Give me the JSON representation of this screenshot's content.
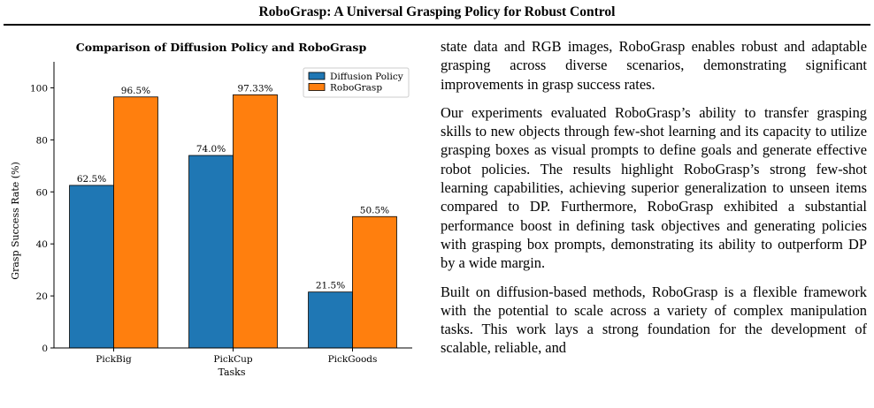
{
  "header": {
    "title": "RoboGrasp: A Universal Grasping Policy for Robust Control"
  },
  "chart_data": {
    "type": "bar",
    "title": "Comparison of Diffusion Policy and RoboGrasp",
    "xlabel": "Tasks",
    "ylabel": "Grasp Success Rate (%)",
    "categories": [
      "PickBig",
      "PickCup",
      "PickGoods"
    ],
    "series": [
      {
        "name": "Diffusion Policy",
        "values": [
          62.5,
          74.0,
          21.5
        ],
        "labels": [
          "62.5%",
          "74.0%",
          "21.5%"
        ],
        "color": "#1f77b4"
      },
      {
        "name": "RoboGrasp",
        "values": [
          96.5,
          97.33,
          50.5
        ],
        "labels": [
          "96.5%",
          "97.33%",
          "50.5%"
        ],
        "color": "#ff7f0e"
      }
    ],
    "ylim": [
      0,
      110
    ],
    "yticks": [
      "0",
      "20",
      "40",
      "60",
      "80",
      "100"
    ],
    "legend": "top-right",
    "grid": false
  },
  "body": {
    "paragraphs": [
      "state data and RGB images, RoboGrasp enables robust and adaptable grasping across diverse scenarios, demonstrating significant improvements in grasp success rates.",
      "Our experiments evaluated RoboGrasp’s ability to transfer grasping skills to new objects through few-shot learning and its capacity to utilize grasping boxes as visual prompts to define goals and generate effective robot policies. The results highlight RoboGrasp’s strong few-shot learning capabilities, achieving superior generalization to unseen items compared to DP. Furthermore, RoboGrasp exhibited a substantial performance boost in defining task objectives and generating policies with grasping box prompts, demonstrating its ability to outperform DP by a wide margin.",
      "Built on diffusion-based methods, RoboGrasp is a flexible framework with the potential to scale across a variety of complex manipulation tasks. This work lays a strong foundation for the development of scalable, reliable, and"
    ]
  }
}
